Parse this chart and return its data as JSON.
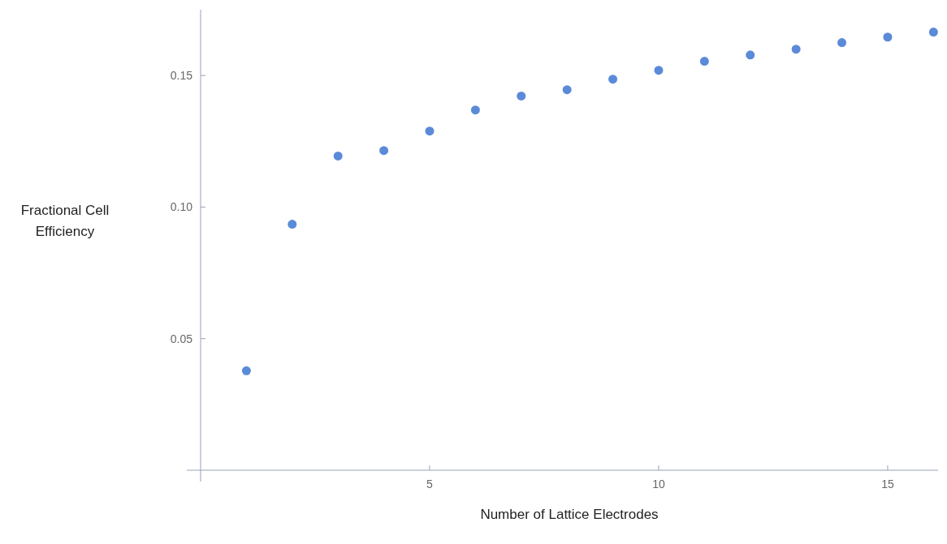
{
  "chart_data": {
    "type": "scatter",
    "xlabel": "Number of Lattice Electrodes",
    "ylabel": "Fractional Cell Efficiency",
    "x": [
      1,
      2,
      3,
      4,
      5,
      6,
      7,
      8,
      9,
      10,
      11,
      12,
      13,
      14,
      15,
      16
    ],
    "series": [
      {
        "color": "#5b8ad8",
        "values": [
          0.0378,
          0.0935,
          0.1194,
          0.1215,
          0.1289,
          0.1369,
          0.1422,
          0.1446,
          0.1486,
          0.152,
          0.1554,
          0.1578,
          0.16,
          0.1625,
          0.1646,
          0.1665
        ]
      }
    ],
    "xlim": [
      0,
      16.1
    ],
    "ylim": [
      0,
      0.175
    ],
    "xticks": [
      5,
      10,
      15
    ],
    "yticks": [
      {
        "value": 0.05,
        "label": "0.05"
      },
      {
        "value": 0.1,
        "label": "0.10"
      },
      {
        "value": 0.15,
        "label": "0.15"
      }
    ],
    "marker": "circle",
    "grid": false
  }
}
